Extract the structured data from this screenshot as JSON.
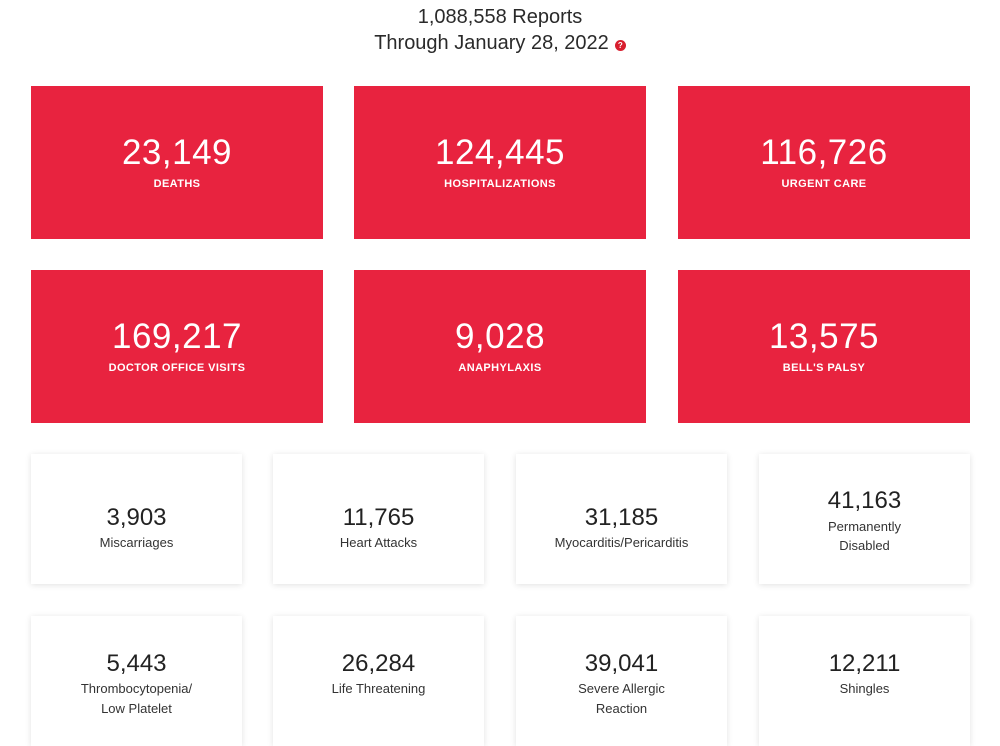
{
  "header": {
    "reports_line": "1,088,558 Reports",
    "through_line": "Through January 28, 2022",
    "help_icon": "question-icon"
  },
  "red_cards": [
    {
      "value": "23,149",
      "label": "DEATHS"
    },
    {
      "value": "124,445",
      "label": "HOSPITALIZATIONS"
    },
    {
      "value": "116,726",
      "label": "URGENT CARE"
    },
    {
      "value": "169,217",
      "label": "DOCTOR OFFICE VISITS"
    },
    {
      "value": "9,028",
      "label": "ANAPHYLAXIS"
    },
    {
      "value": "13,575",
      "label": "BELL'S PALSY"
    }
  ],
  "white_cards": [
    {
      "value": "3,903",
      "label_1": "Miscarriages",
      "label_2": ""
    },
    {
      "value": "11,765",
      "label_1": "Heart Attacks",
      "label_2": ""
    },
    {
      "value": "31,185",
      "label_1": "Myocarditis/Pericarditis",
      "label_2": ""
    },
    {
      "value": "41,163",
      "label_1": "Permanently",
      "label_2": "Disabled"
    },
    {
      "value": "5,443",
      "label_1": "Thrombocytopenia/",
      "label_2": "Low Platelet"
    },
    {
      "value": "26,284",
      "label_1": "Life Threatening",
      "label_2": ""
    },
    {
      "value": "39,041",
      "label_1": "Severe Allergic",
      "label_2": "Reaction"
    },
    {
      "value": "12,211",
      "label_1": "Shingles",
      "label_2": ""
    }
  ],
  "colors": {
    "card_red": "#e8233f",
    "help_red": "#d81e2e"
  }
}
